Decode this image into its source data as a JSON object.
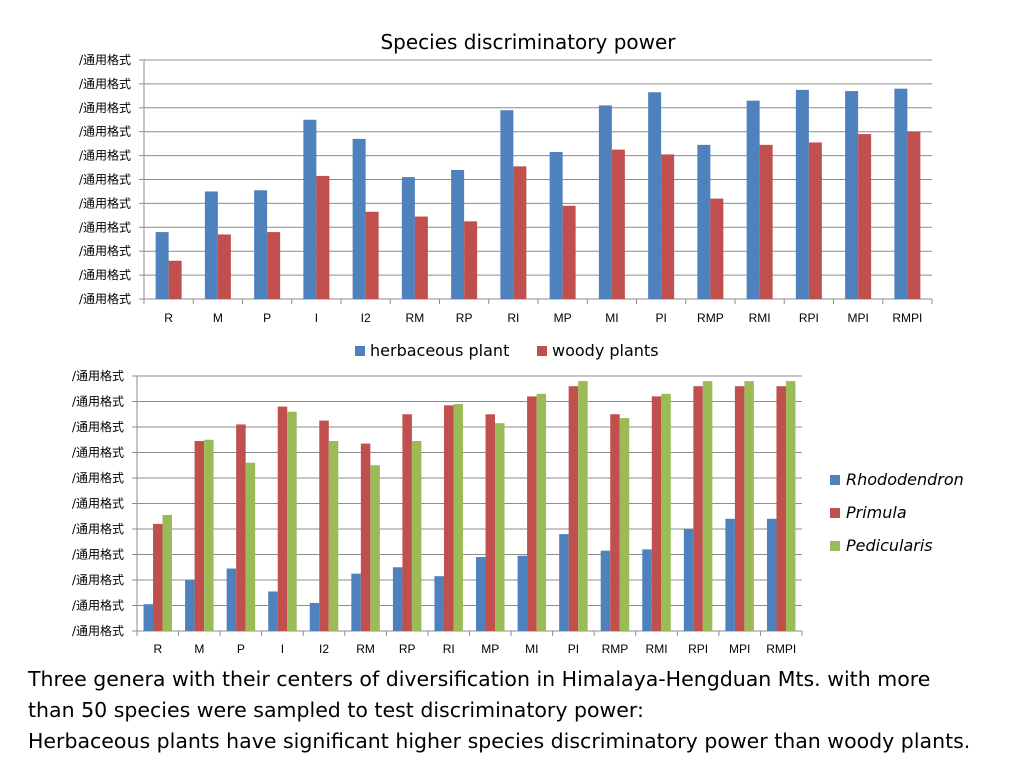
{
  "chart_data": [
    {
      "type": "bar",
      "title": "Species discriminatory power",
      "xlabel": "",
      "ylabel": "",
      "y_tick_labels": [
        "/通用格式",
        "/通用格式",
        "/通用格式",
        "/通用格式",
        "/通用格式",
        "/通用格式",
        "/通用格式",
        "/通用格式",
        "/通用格式",
        "/通用格式",
        "/通用格式"
      ],
      "ylim": [
        0,
        10
      ],
      "grid": true,
      "legend_position": "bottom",
      "categories": [
        "R",
        "M",
        "P",
        "I",
        "I2",
        "RM",
        "RP",
        "RI",
        "MP",
        "MI",
        "PI",
        "RMP",
        "RMI",
        "RPI",
        "MPI",
        "RMPI"
      ],
      "series": [
        {
          "name": "herbaceous plant",
          "color": "#4F81BD",
          "values": [
            2.8,
            4.5,
            4.55,
            7.5,
            6.7,
            5.1,
            5.4,
            7.9,
            6.15,
            8.1,
            8.65,
            6.45,
            8.3,
            8.75,
            8.7,
            8.8
          ]
        },
        {
          "name": "woody plants",
          "color": "#C0504D",
          "values": [
            1.6,
            2.7,
            2.8,
            5.15,
            3.65,
            3.45,
            3.25,
            5.55,
            3.9,
            6.25,
            6.05,
            4.2,
            6.45,
            6.55,
            6.9,
            7.0
          ]
        }
      ]
    },
    {
      "type": "bar",
      "title": "",
      "xlabel": "",
      "ylabel": "",
      "y_tick_labels": [
        "/通用格式",
        "/通用格式",
        "/通用格式",
        "/通用格式",
        "/通用格式",
        "/通用格式",
        "/通用格式",
        "/通用格式",
        "/通用格式",
        "/通用格式",
        "/通用格式"
      ],
      "ylim": [
        0,
        10
      ],
      "grid": true,
      "legend_position": "right",
      "categories": [
        "R",
        "M",
        "P",
        "I",
        "I2",
        "RM",
        "RP",
        "RI",
        "MP",
        "MI",
        "PI",
        "RMP",
        "RMI",
        "RPI",
        "MPI",
        "RMPI"
      ],
      "series": [
        {
          "name": "Rhododendron",
          "color": "#4F81BD",
          "values": [
            1.05,
            2.0,
            2.45,
            1.55,
            1.1,
            2.25,
            2.5,
            2.15,
            2.9,
            2.95,
            3.8,
            3.15,
            3.2,
            4.0,
            4.4,
            4.4
          ]
        },
        {
          "name": "Primula",
          "color": "#C0504D",
          "values": [
            4.2,
            7.45,
            8.1,
            8.8,
            8.25,
            7.35,
            8.5,
            8.85,
            8.5,
            9.2,
            9.6,
            8.5,
            9.2,
            9.6,
            9.6,
            9.6
          ]
        },
        {
          "name": "Pedicularis",
          "color": "#9BBB59",
          "values": [
            4.55,
            7.5,
            6.6,
            8.6,
            7.45,
            6.5,
            7.45,
            8.9,
            8.15,
            9.3,
            9.8,
            8.35,
            9.3,
            9.8,
            9.8,
            9.8
          ]
        }
      ]
    }
  ],
  "caption": {
    "line1": "Three genera with their centers of diversification in Himalaya-Hengduan Mts. with more",
    "line2": "than 50 species were sampled to test discriminatory power:",
    "line3": "Herbaceous plants have significant higher species discriminatory power than woody plants."
  }
}
